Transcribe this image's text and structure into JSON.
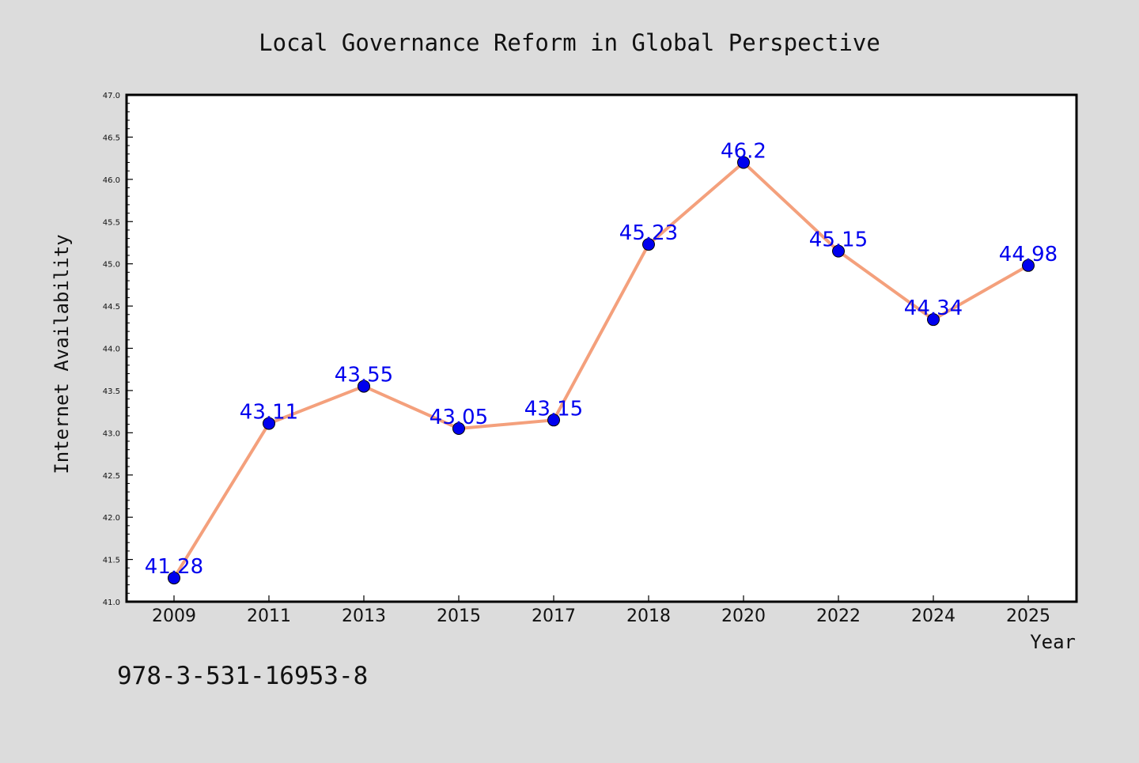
{
  "chart_data": {
    "type": "line",
    "title": "Local Governance Reform in Global Perspective",
    "xlabel": "Year",
    "ylabel": "Internet Availability",
    "categories": [
      "2009",
      "2011",
      "2013",
      "2015",
      "2017",
      "2018",
      "2020",
      "2022",
      "2024",
      "2025"
    ],
    "series": [
      {
        "values": [
          41.28,
          43.11,
          43.55,
          43.05,
          43.15,
          45.23,
          46.2,
          45.15,
          44.34,
          44.98
        ],
        "data_labels": [
          "41.28",
          "43.11",
          "43.55",
          "43.05",
          "43.15",
          "45.23",
          "46.2",
          "45.15",
          "44.34",
          "44.98"
        ],
        "line_color": "#f4a07c",
        "marker_color": "#0000ee",
        "label_color": "#0000ee"
      }
    ],
    "ylim": [
      41.0,
      47.0
    ],
    "yticks": [
      "41.0",
      "41.5",
      "42.0",
      "42.5",
      "43.0",
      "43.5",
      "44.0",
      "44.5",
      "45.0",
      "45.5",
      "46.0",
      "46.5",
      "47.0"
    ],
    "grid": false,
    "legend": "none"
  },
  "annotation": "978-3-531-16953-8",
  "colors": {
    "background": "#dcdcdc",
    "plot_background": "#ffffff"
  }
}
